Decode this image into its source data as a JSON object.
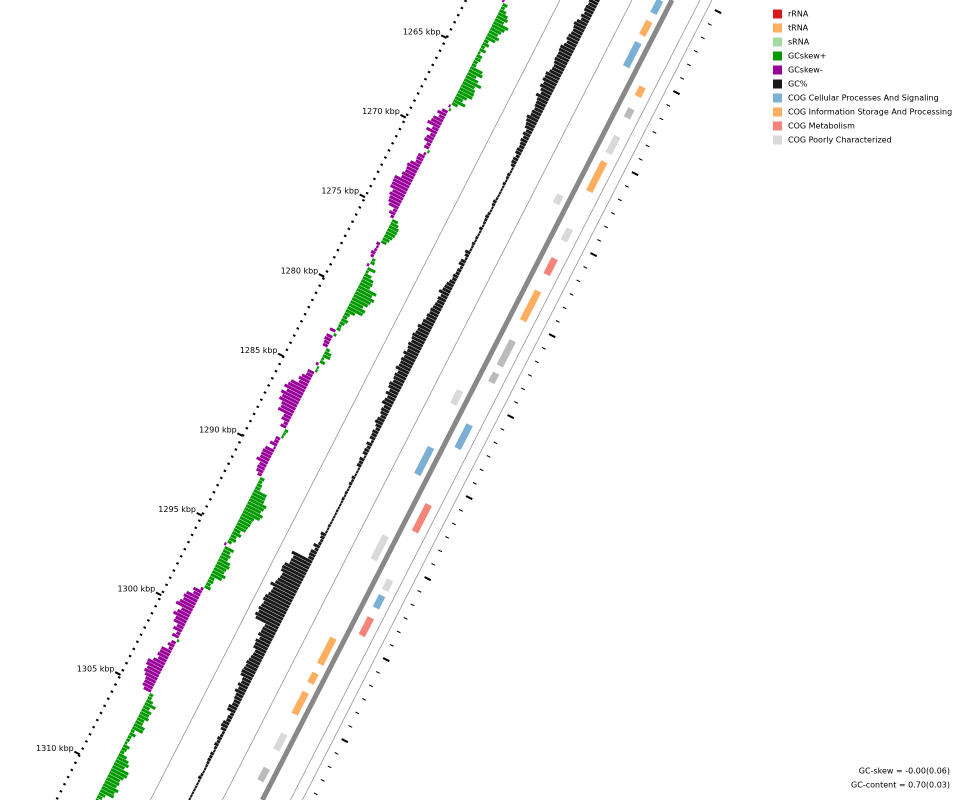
{
  "scale": {
    "ticks": [
      "1265 kbp",
      "1270 kbp",
      "1275 kbp",
      "1280 kbp",
      "1285 kbp",
      "1290 kbp",
      "1295 kbp",
      "1300 kbp",
      "1305 kbp",
      "1310 kbp"
    ]
  },
  "legend": [
    {
      "label": "rRNA",
      "color": "#d7191c"
    },
    {
      "label": "tRNA",
      "color": "#fdae61"
    },
    {
      "label": "sRNA",
      "color": "#a6dba0"
    },
    {
      "label": "GCskew+",
      "color": "#009900"
    },
    {
      "label": "GCskew-",
      "color": "#990099"
    },
    {
      "label": "GC%",
      "color": "#1a1a1a"
    },
    {
      "label": "COG Cellular Processes And Signaling",
      "color": "#7bafd4"
    },
    {
      "label": "COG Information Storage And Processing",
      "color": "#fdae61"
    },
    {
      "label": "COG Metabolism",
      "color": "#f4837a"
    },
    {
      "label": "COG Poorly Characterized",
      "color": "#d9d9d9"
    }
  ],
  "footer": [
    "GC-skew = -0.00(0.06)",
    "GC-content = 0.70(0.03)"
  ]
}
